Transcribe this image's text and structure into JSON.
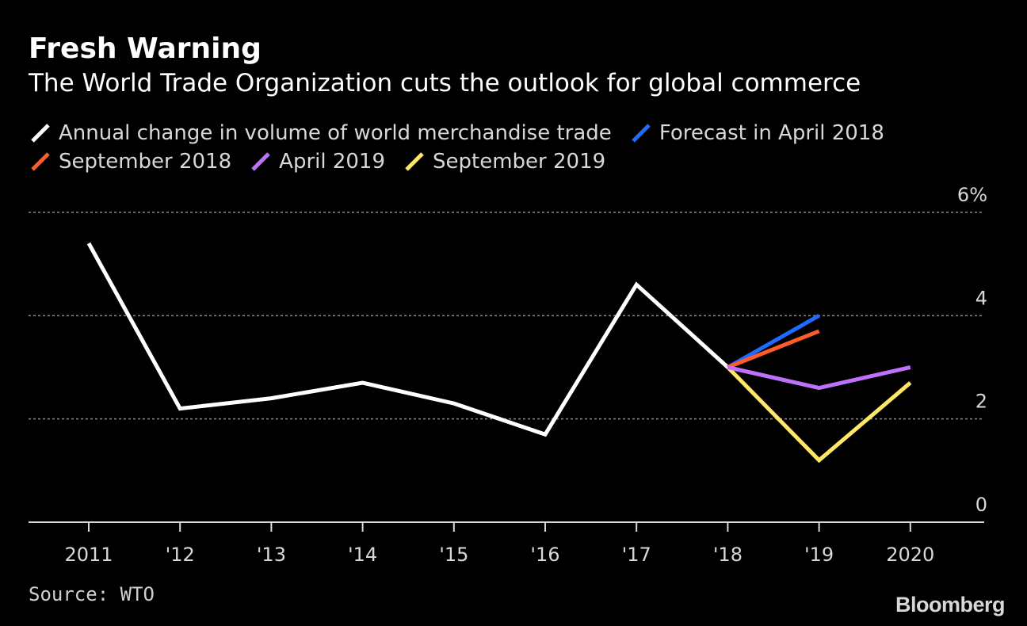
{
  "header": {
    "title": "Fresh Warning",
    "subtitle": "The World Trade Organization cuts the outlook for global commerce"
  },
  "legend": [
    {
      "label": "Annual change in volume of world merchandise trade",
      "color": "#ffffff"
    },
    {
      "label": "Forecast in April 2018",
      "color": "#1f6bff"
    },
    {
      "label": "September 2018",
      "color": "#ff5a2b"
    },
    {
      "label": "April 2019",
      "color": "#c070ff"
    },
    {
      "label": "September 2019",
      "color": "#ffe866"
    }
  ],
  "chart_data": {
    "type": "line",
    "categories": [
      "2011",
      "'12",
      "'13",
      "'14",
      "'15",
      "'16",
      "'17",
      "'18",
      "'19",
      "2020"
    ],
    "ylim": [
      0,
      6
    ],
    "yticks": [
      0,
      2,
      4,
      6
    ],
    "ytick_labels": [
      "0",
      "2",
      "4",
      "6%"
    ],
    "grid": true,
    "series": [
      {
        "name": "Annual change in volume of world merchandise trade",
        "color": "#ffffff",
        "points": [
          [
            0,
            5.4
          ],
          [
            1,
            2.2
          ],
          [
            2,
            2.4
          ],
          [
            3,
            2.7
          ],
          [
            4,
            2.3
          ],
          [
            5,
            1.7
          ],
          [
            6,
            4.6
          ],
          [
            7,
            3.0
          ]
        ]
      },
      {
        "name": "Forecast in April 2018",
        "color": "#1f6bff",
        "points": [
          [
            7,
            3.0
          ],
          [
            8,
            4.0
          ]
        ]
      },
      {
        "name": "September 2018",
        "color": "#ff5a2b",
        "points": [
          [
            7,
            3.0
          ],
          [
            8,
            3.7
          ]
        ]
      },
      {
        "name": "April 2019",
        "color": "#c070ff",
        "points": [
          [
            7,
            3.0
          ],
          [
            8,
            2.6
          ],
          [
            9,
            3.0
          ]
        ]
      },
      {
        "name": "September 2019",
        "color": "#ffe866",
        "points": [
          [
            7,
            3.0
          ],
          [
            8,
            1.2
          ],
          [
            9,
            2.7
          ]
        ]
      }
    ]
  },
  "footer": {
    "source": "Source: WTO",
    "brand": "Bloomberg"
  }
}
